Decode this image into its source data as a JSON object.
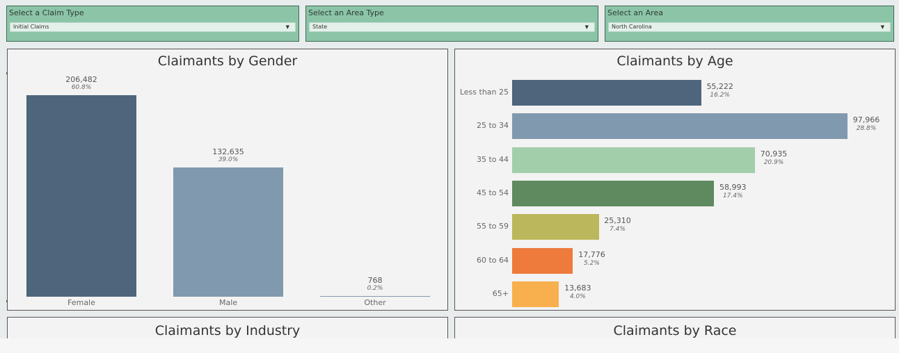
{
  "filters": [
    {
      "label": "Select a Claim Type",
      "value": "Initial Claims"
    },
    {
      "label": "Select an Area Type",
      "value": "State"
    },
    {
      "label": "Select an Area",
      "value": "North Carolina"
    }
  ],
  "panels": {
    "industry_title": "Claimants by Industry",
    "race_title": "Claimants by Race"
  },
  "chart_data": [
    {
      "type": "bar",
      "title": "Claimants by Gender",
      "orientation": "vertical",
      "categories": [
        "Female",
        "Male",
        "Other"
      ],
      "values": [
        206482,
        132635,
        768
      ],
      "value_labels": [
        "206,482",
        "132,635",
        "768"
      ],
      "percent_labels": [
        "60.8%",
        "39.0%",
        "0.2%"
      ],
      "colors": [
        "#4e657c",
        "#8199ae",
        "#8199ae"
      ],
      "ylim": [
        0,
        206482
      ]
    },
    {
      "type": "bar",
      "title": "Claimants by Age",
      "orientation": "horizontal",
      "categories": [
        "Less than 25",
        "25 to 34",
        "35 to 44",
        "45 to 54",
        "55 to 59",
        "60 to 64",
        "65+"
      ],
      "values": [
        55222,
        97966,
        70935,
        58993,
        25310,
        17776,
        13683
      ],
      "value_labels": [
        "55,222",
        "97,966",
        "70,935",
        "58,993",
        "25,310",
        "17,776",
        "13,683"
      ],
      "percent_labels": [
        "16.2%",
        "28.8%",
        "20.9%",
        "17.4%",
        "7.4%",
        "5.2%",
        "4.0%"
      ],
      "colors": [
        "#4e657c",
        "#8199ae",
        "#a2ceaa",
        "#5f8a60",
        "#bbb75c",
        "#ee7a3c",
        "#f7b04d"
      ],
      "xlim": [
        0,
        97966
      ]
    }
  ]
}
